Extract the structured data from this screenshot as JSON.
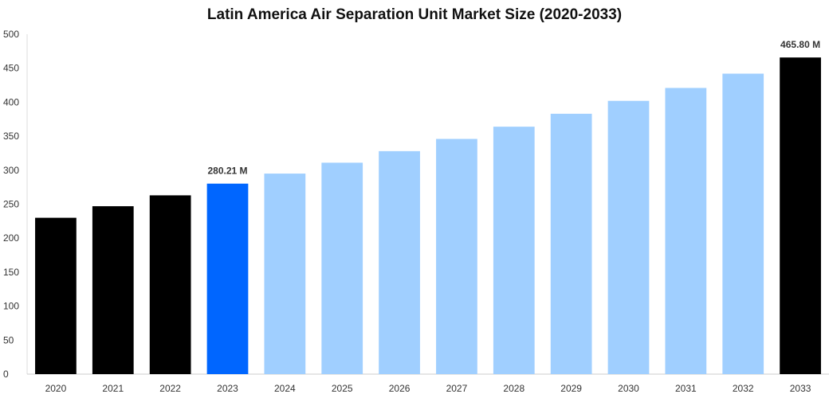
{
  "chart_data": {
    "type": "bar",
    "title": "Latin America Air Separation Unit Market Size (2020-2033)",
    "xlabel": "",
    "ylabel": "",
    "ylim": [
      0,
      500
    ],
    "yticks": [
      0,
      50,
      100,
      150,
      200,
      250,
      300,
      350,
      400,
      450,
      500
    ],
    "grid": false,
    "categories": [
      "2020",
      "2021",
      "2022",
      "2023",
      "2024",
      "2025",
      "2026",
      "2027",
      "2028",
      "2029",
      "2030",
      "2031",
      "2032",
      "2033"
    ],
    "values": [
      230,
      247,
      263,
      280.21,
      295,
      311,
      328,
      346,
      364,
      383,
      402,
      421,
      442,
      465.8
    ],
    "colors": [
      "#000000",
      "#000000",
      "#000000",
      "#0066ff",
      "#a0cfff",
      "#a0cfff",
      "#a0cfff",
      "#a0cfff",
      "#a0cfff",
      "#a0cfff",
      "#a0cfff",
      "#a0cfff",
      "#a0cfff",
      "#000000"
    ],
    "data_labels": [
      {
        "category": "2023",
        "text": "280.21 M"
      },
      {
        "category": "2033",
        "text": "465.80 M"
      }
    ]
  }
}
